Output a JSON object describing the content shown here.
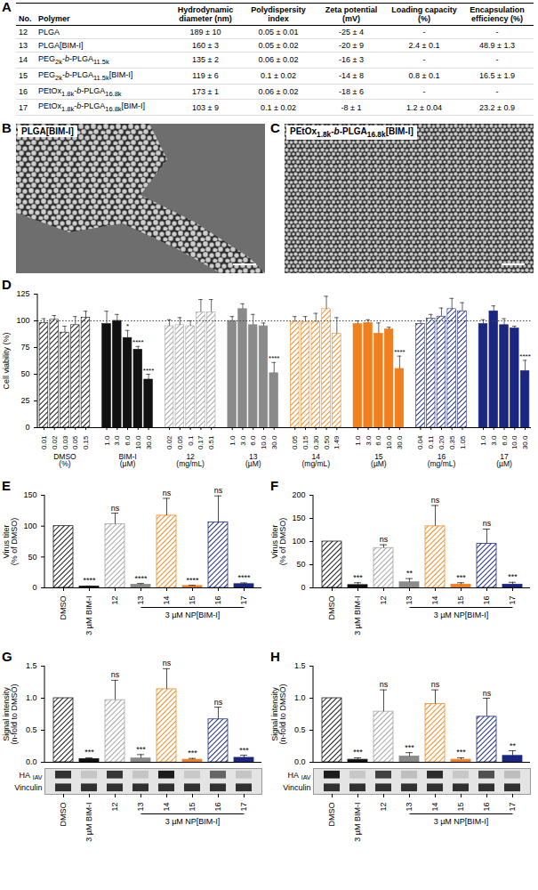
{
  "table": {
    "letter": "A",
    "columns": [
      "No.",
      "Polymer",
      "Hydrodynamic diameter (nm)",
      "Polydispersity index",
      "Zeta potential (mV)",
      "Loading capacity (%)",
      "Encapsulation efficiency (%)"
    ],
    "rows": [
      [
        "12",
        "PLGA",
        "189 ± 10",
        "0.05 ± 0.01",
        "-25 ± 4",
        "-",
        "-"
      ],
      [
        "13",
        "PLGA[BIM-I]",
        "160 ± 3",
        "0.05 ± 0.02",
        "-20 ± 9",
        "2.4 ± 0.1",
        "48.9 ± 1.3"
      ],
      [
        "14",
        "PEG2k-b-PLGA11.5k",
        "135 ± 2",
        "0.06 ± 0.02",
        "-16 ± 3",
        "-",
        "-"
      ],
      [
        "15",
        "PEG2k-b-PLGA11.5k[BIM-I]",
        "119 ± 6",
        "0.1 ± 0.02",
        "-14 ± 8",
        "0.8 ± 0.1",
        "16.5 ± 1.9"
      ],
      [
        "16",
        "PEtOx1.8k-b-PLGA16.8k",
        "173 ± 1",
        "0.06 ± 0.02",
        "-18 ± 6",
        "-",
        "-"
      ],
      [
        "17",
        "PEtOx1.8k-b-PLGA16.8k[BIM-I]",
        "103 ± 9",
        "0.1 ± 0.02",
        "-8 ± 1",
        "1.2 ± 0.04",
        "23.2 ± 0.9"
      ]
    ]
  },
  "images": [
    {
      "letter": "B",
      "label": "PLGA[BIM-I]"
    },
    {
      "letter": "C",
      "label": "PEtOx1.8k-b-PLGA16.8k[BIM-I]"
    }
  ],
  "chart_data": [
    {
      "letter": "D",
      "type": "bar",
      "ylabel": "Cell viability (%)",
      "ylim": [
        0,
        125
      ],
      "yticks": [
        0,
        25,
        50,
        75,
        100,
        125
      ],
      "reference": 100,
      "groups": [
        {
          "name": "DMSO",
          "unit": "(%)",
          "color": "#1a1a1a",
          "marker": "hatched",
          "categories": [
            "0.01",
            "0.02",
            "0.03",
            "0.05",
            "0.15"
          ],
          "values": [
            98,
            101,
            89,
            96,
            103
          ],
          "errors": [
            4,
            4,
            6,
            8,
            6
          ],
          "significance": [
            null,
            null,
            null,
            null,
            null
          ]
        },
        {
          "name": "BIM-I",
          "unit": "(µM)",
          "color": "#111111",
          "marker": "solid",
          "categories": [
            "1.0",
            "3.0",
            "6.0",
            "10.0",
            "30.0"
          ],
          "values": [
            97,
            100,
            84,
            73,
            45
          ],
          "errors": [
            12,
            6,
            7,
            3,
            5
          ],
          "significance": [
            null,
            null,
            "*",
            "****",
            "****"
          ]
        },
        {
          "name": "12",
          "unit": "(mg/mL)",
          "color": "#a6a6a6",
          "marker": "hatched",
          "categories": [
            "0.02",
            "0.05",
            "0.1",
            "0.17",
            "0.51"
          ],
          "values": [
            95,
            96,
            95,
            108,
            108
          ],
          "errors": [
            6,
            7,
            5,
            12,
            12
          ],
          "significance": [
            null,
            null,
            null,
            null,
            null
          ]
        },
        {
          "name": "13",
          "unit": "(µM)",
          "color": "#8a8a8a",
          "marker": "solid",
          "categories": [
            "1.0",
            "3.0",
            "6.0",
            "10.0",
            "30.0"
          ],
          "values": [
            100,
            111,
            96,
            95,
            51
          ],
          "errors": [
            4,
            5,
            10,
            3,
            10
          ],
          "significance": [
            null,
            null,
            null,
            null,
            "****"
          ]
        },
        {
          "name": "14",
          "unit": "(mg/mL)",
          "color": "#f28c28",
          "marker": "hatched",
          "categories": [
            "0.05",
            "0.15",
            "0.30",
            "0.50",
            "1.49"
          ],
          "values": [
            99,
            99,
            99,
            111,
            88
          ],
          "errors": [
            5,
            5,
            8,
            12,
            15
          ],
          "significance": [
            null,
            null,
            null,
            null,
            null
          ]
        },
        {
          "name": "15",
          "unit": "(µM)",
          "color": "#f07f1e",
          "marker": "solid",
          "categories": [
            "1.0",
            "3.0",
            "6.0",
            "10.0",
            "30.0"
          ],
          "values": [
            97,
            98,
            88,
            92,
            55
          ],
          "errors": [
            3,
            3,
            10,
            2,
            12
          ],
          "significance": [
            null,
            null,
            null,
            null,
            "****"
          ]
        },
        {
          "name": "16",
          "unit": "(mg/mL)",
          "color": "#1f2d8c",
          "marker": "hatched",
          "categories": [
            "0.04",
            "0.11",
            "0.20",
            "0.35",
            "1.05"
          ],
          "values": [
            97,
            102,
            104,
            111,
            109
          ],
          "errors": [
            3,
            4,
            8,
            10,
            8
          ],
          "significance": [
            null,
            null,
            null,
            null,
            null
          ]
        },
        {
          "name": "17",
          "unit": "(µM)",
          "color": "#1b2680",
          "marker": "solid",
          "categories": [
            "1.0",
            "3.0",
            "6.0",
            "10.0",
            "30.0"
          ],
          "values": [
            97,
            109,
            96,
            93,
            53
          ],
          "errors": [
            4,
            5,
            6,
            2,
            10
          ],
          "significance": [
            null,
            null,
            null,
            null,
            "****"
          ]
        }
      ]
    },
    {
      "letter": "E",
      "type": "bar",
      "ylabel": "Virus titer (% of DMSO)",
      "ylim": [
        0,
        150
      ],
      "yticks": [
        0,
        50,
        100,
        150
      ],
      "categories": [
        "DMSO",
        "3 µM BIM-I",
        "12",
        "13",
        "14",
        "15",
        "16",
        "17"
      ],
      "values": [
        100,
        2,
        103,
        5,
        117,
        3,
        106,
        6
      ],
      "errors": [
        0,
        1,
        18,
        2,
        28,
        1,
        43,
        2
      ],
      "significance": [
        null,
        "****",
        "ns",
        "****",
        "ns",
        "****",
        "ns",
        "****"
      ],
      "colors": [
        "#1a1a1a",
        "#111111",
        "#a6a6a6",
        "#8a8a8a",
        "#f28c28",
        "#f07f1e",
        "#1f2d8c",
        "#1b2680"
      ],
      "marker": [
        "hatched",
        "solid",
        "hatched",
        "solid",
        "hatched",
        "solid",
        "hatched",
        "solid"
      ],
      "bracket": {
        "label": "3 µM NP[BIM-I]",
        "from": "13",
        "to": "17"
      }
    },
    {
      "letter": "F",
      "type": "bar",
      "ylabel": "Virus titer (% of DMSO)",
      "ylim": [
        0,
        200
      ],
      "yticks": [
        0,
        50,
        100,
        150,
        200
      ],
      "categories": [
        "DMSO",
        "3 µM BIM-I",
        "12",
        "13",
        "14",
        "15",
        "16",
        "17"
      ],
      "values": [
        100,
        6,
        86,
        12,
        133,
        7,
        95,
        7
      ],
      "errors": [
        0,
        5,
        7,
        8,
        45,
        4,
        32,
        5
      ],
      "significance": [
        null,
        "***",
        "ns",
        "**",
        "ns",
        "***",
        "ns",
        "***"
      ],
      "colors": [
        "#1a1a1a",
        "#111111",
        "#a6a6a6",
        "#8a8a8a",
        "#f28c28",
        "#f07f1e",
        "#1f2d8c",
        "#1b2680"
      ],
      "marker": [
        "hatched",
        "solid",
        "hatched",
        "solid",
        "hatched",
        "solid",
        "hatched",
        "solid"
      ],
      "bracket": {
        "label": "3 µM NP[BIM-I]",
        "from": "13",
        "to": "17"
      }
    },
    {
      "letter": "G",
      "type": "bar",
      "ylabel": "Signal intensity (n-fold to DMSO)",
      "ylim": [
        0,
        1.5
      ],
      "yticks": [
        {
          "value": 0,
          "label": "0.0"
        },
        0.5,
        {
          "value": 1,
          "label": "1.0"
        },
        1.5
      ],
      "categories": [
        "DMSO",
        "3 µM BIM-I",
        "12",
        "13",
        "14",
        "15",
        "16",
        "17"
      ],
      "values": [
        1,
        0.05,
        0.97,
        0.06,
        1.14,
        0.04,
        0.67,
        0.07
      ],
      "errors": [
        0,
        0.02,
        0.31,
        0.06,
        0.32,
        0.02,
        0.19,
        0.04
      ],
      "significance": [
        null,
        "***",
        "ns",
        "***",
        "ns",
        "***",
        "ns",
        "***"
      ],
      "colors": [
        "#1a1a1a",
        "#111111",
        "#a6a6a6",
        "#8a8a8a",
        "#f28c28",
        "#f07f1e",
        "#1f2d8c",
        "#1b2680"
      ],
      "marker": [
        "hatched",
        "solid",
        "hatched",
        "solid",
        "hatched",
        "solid",
        "hatched",
        "solid"
      ],
      "blots": [
        {
          "label": "HA",
          "subscript": "IAV"
        },
        {
          "label": "Vinculin"
        }
      ],
      "bracket": {
        "label": "3 µM NP[BIM-I]",
        "from": "13",
        "to": "17"
      }
    },
    {
      "letter": "H",
      "type": "bar",
      "ylabel": "Signal intensity (n-fold to DMSO)",
      "ylim": [
        0,
        1.5
      ],
      "yticks": [
        {
          "value": 0,
          "label": "0.0"
        },
        0.5,
        {
          "value": 1,
          "label": "1.0"
        },
        1.5
      ],
      "categories": [
        "DMSO",
        "3 µM BIM-I",
        "12",
        "13",
        "14",
        "15",
        "16",
        "17"
      ],
      "values": [
        1,
        0.04,
        0.79,
        0.09,
        0.91,
        0.04,
        0.71,
        0.1
      ],
      "errors": [
        0,
        0.03,
        0.34,
        0.06,
        0.22,
        0.03,
        0.29,
        0.08
      ],
      "significance": [
        null,
        "***",
        "ns",
        "***",
        "ns",
        "***",
        "ns",
        "**"
      ],
      "colors": [
        "#1a1a1a",
        "#111111",
        "#a6a6a6",
        "#8a8a8a",
        "#f28c28",
        "#f07f1e",
        "#1f2d8c",
        "#1b2680"
      ],
      "marker": [
        "hatched",
        "solid",
        "hatched",
        "solid",
        "hatched",
        "solid",
        "hatched",
        "solid"
      ],
      "blots": [
        {
          "label": "HA",
          "subscript": "IAV"
        },
        {
          "label": "Vinculin"
        }
      ],
      "bracket": {
        "label": "3 µM NP[BIM-I]",
        "from": "13",
        "to": "17"
      }
    }
  ]
}
